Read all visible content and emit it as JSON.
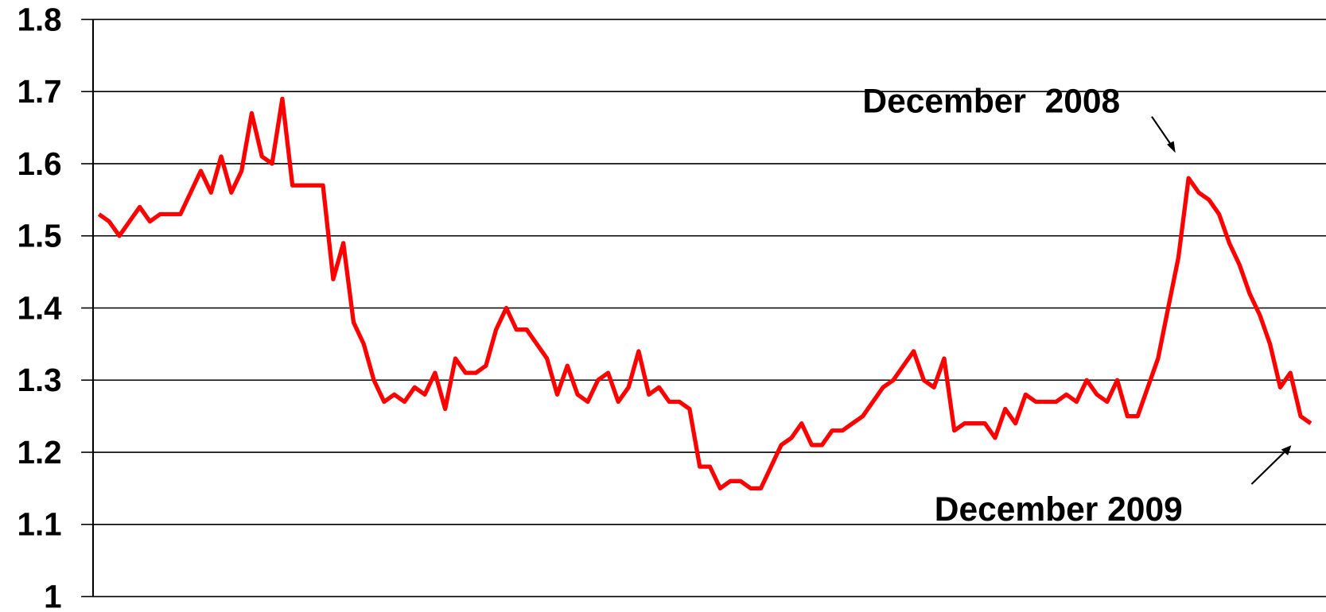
{
  "chart_data": {
    "type": "line",
    "annotations": [
      "December  2008",
      "December 2009"
    ],
    "series": [
      {
        "color": "#ff0000",
        "values": [
          1.53,
          1.52,
          1.5,
          1.52,
          1.54,
          1.52,
          1.53,
          1.53,
          1.53,
          1.56,
          1.59,
          1.56,
          1.61,
          1.56,
          1.59,
          1.67,
          1.61,
          1.6,
          1.69,
          1.57,
          1.57,
          1.57,
          1.57,
          1.44,
          1.49,
          1.38,
          1.35,
          1.3,
          1.27,
          1.28,
          1.27,
          1.29,
          1.28,
          1.31,
          1.26,
          1.33,
          1.31,
          1.31,
          1.32,
          1.37,
          1.4,
          1.37,
          1.37,
          1.35,
          1.33,
          1.28,
          1.32,
          1.28,
          1.27,
          1.3,
          1.31,
          1.27,
          1.29,
          1.34,
          1.28,
          1.29,
          1.27,
          1.27,
          1.26,
          1.18,
          1.18,
          1.15,
          1.16,
          1.16,
          1.15,
          1.15,
          1.18,
          1.21,
          1.22,
          1.24,
          1.21,
          1.21,
          1.23,
          1.23,
          1.24,
          1.25,
          1.27,
          1.29,
          1.3,
          1.32,
          1.34,
          1.3,
          1.29,
          1.33,
          1.23,
          1.24,
          1.24,
          1.24,
          1.22,
          1.26,
          1.24,
          1.28,
          1.27,
          1.27,
          1.27,
          1.28,
          1.27,
          1.3,
          1.28,
          1.27,
          1.3,
          1.25,
          1.25,
          1.29,
          1.33,
          1.4,
          1.47,
          1.58,
          1.56,
          1.55,
          1.53,
          1.49,
          1.46,
          1.42,
          1.39,
          1.35,
          1.29,
          1.31,
          1.25,
          1.24
        ]
      }
    ],
    "ylim": [
      1,
      1.8
    ],
    "yticks": [
      1,
      1.1,
      1.2,
      1.3,
      1.4,
      1.5,
      1.6,
      1.7,
      1.8
    ],
    "grid": true
  }
}
